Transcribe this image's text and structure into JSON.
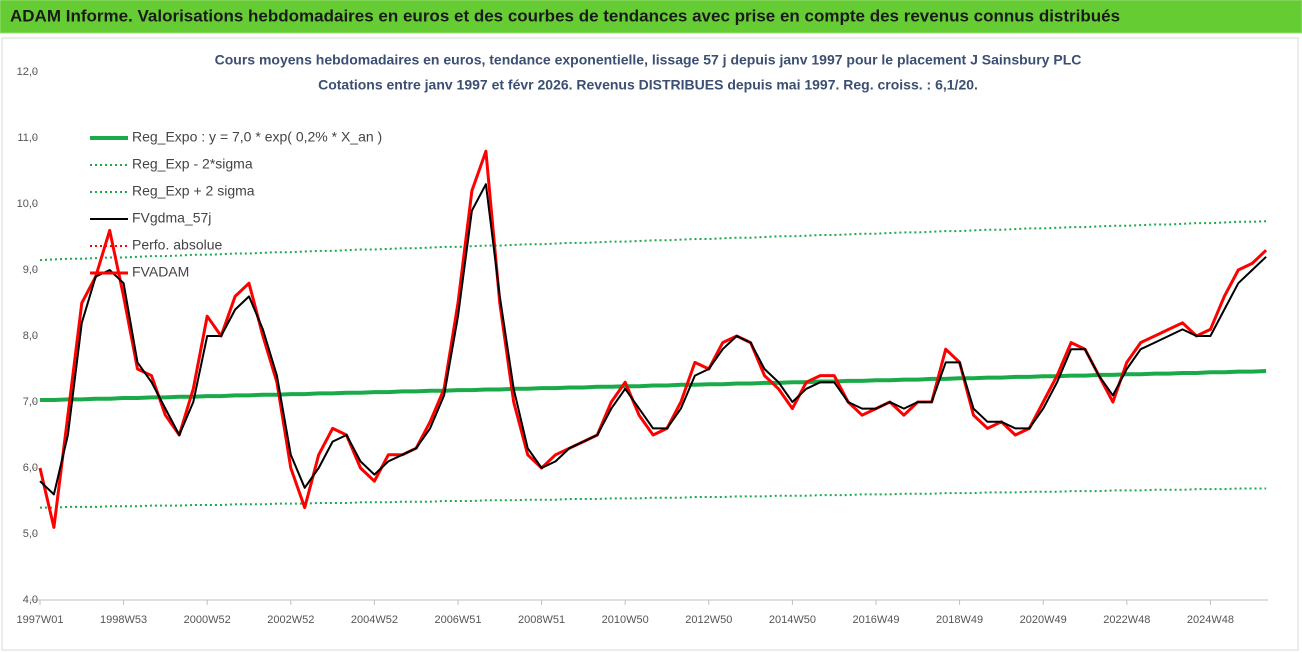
{
  "header": "ADAM Informe. Valorisations hebdomadaires en euros et des courbes de tendances avec prise en compte des revenus connus distribués",
  "chart_data": {
    "type": "line",
    "title": "Cours moyens hebdomadaires en euros, tendance exponentielle, lissage 57 j depuis janv 1997 pour le placement J Sainsbury PLC",
    "subtitle": "Cotations entre janv 1997 et févr 2026. Revenus DISTRIBUES depuis mai 1997. Reg. croiss. : 6,1/20.",
    "legend": "upper left",
    "categories": [
      "1997W01",
      null,
      null,
      null,
      null,
      null,
      "1998W53",
      null,
      null,
      null,
      null,
      null,
      "2000W52",
      null,
      null,
      null,
      null,
      null,
      "2002W52",
      null,
      null,
      null,
      null,
      null,
      "2004W52",
      null,
      null,
      null,
      null,
      null,
      "2006W51",
      null,
      null,
      null,
      null,
      null,
      "2008W51",
      null,
      null,
      null,
      null,
      null,
      "2010W50",
      null,
      null,
      null,
      null,
      null,
      "2012W50",
      null,
      null,
      null,
      null,
      null,
      "2014W50",
      null,
      null,
      null,
      null,
      null,
      "2016W49",
      null,
      null,
      null,
      null,
      null,
      "2018W49",
      null,
      null,
      null,
      null,
      null,
      "2020W49",
      null,
      null,
      null,
      null,
      null,
      "2022W48",
      null,
      null,
      null,
      null,
      null,
      "2024W48",
      null,
      null,
      null,
      null
    ],
    "ylim": [
      4,
      12
    ],
    "yticks": [
      {
        "value": 4,
        "label": "4,0"
      },
      {
        "value": 5,
        "label": "5,0"
      },
      {
        "value": 6,
        "label": "6,0"
      },
      {
        "value": 7,
        "label": "7,0"
      },
      {
        "value": 8,
        "label": "8,0"
      },
      {
        "value": 9,
        "label": "9,0"
      },
      {
        "value": 10,
        "label": "10,0"
      },
      {
        "value": 11,
        "label": "11,0"
      },
      {
        "value": 12,
        "label": "12,0"
      }
    ],
    "series": [
      {
        "name": "Reg_Expo : y = 7,0 * exp( 0,2% *  X_an )",
        "color": "#1aaa4a",
        "style": "solid",
        "width": 4,
        "values": [
          7.03,
          7.03,
          7.04,
          7.04,
          7.05,
          7.05,
          7.06,
          7.06,
          7.07,
          7.07,
          7.08,
          7.08,
          7.09,
          7.09,
          7.1,
          7.1,
          7.11,
          7.11,
          7.12,
          7.12,
          7.13,
          7.13,
          7.14,
          7.14,
          7.15,
          7.15,
          7.16,
          7.16,
          7.17,
          7.17,
          7.18,
          7.18,
          7.19,
          7.19,
          7.2,
          7.2,
          7.21,
          7.21,
          7.22,
          7.22,
          7.23,
          7.23,
          7.24,
          7.24,
          7.25,
          7.25,
          7.26,
          7.26,
          7.27,
          7.27,
          7.28,
          7.28,
          7.29,
          7.29,
          7.3,
          7.3,
          7.31,
          7.31,
          7.32,
          7.32,
          7.33,
          7.33,
          7.34,
          7.34,
          7.35,
          7.35,
          7.36,
          7.36,
          7.37,
          7.37,
          7.38,
          7.38,
          7.39,
          7.39,
          7.4,
          7.4,
          7.41,
          7.41,
          7.42,
          7.42,
          7.43,
          7.43,
          7.44,
          7.44,
          7.45,
          7.45,
          7.46,
          7.46,
          7.47
        ]
      },
      {
        "name": "Reg_Exp - 2*sigma",
        "color": "#1aaa4a",
        "style": "dotted",
        "width": 2,
        "values": [
          5.4,
          5.4,
          5.41,
          5.41,
          5.41,
          5.42,
          5.42,
          5.42,
          5.43,
          5.43,
          5.43,
          5.44,
          5.44,
          5.44,
          5.45,
          5.45,
          5.45,
          5.46,
          5.46,
          5.46,
          5.47,
          5.47,
          5.47,
          5.48,
          5.48,
          5.48,
          5.49,
          5.49,
          5.49,
          5.5,
          5.5,
          5.5,
          5.51,
          5.51,
          5.51,
          5.52,
          5.52,
          5.52,
          5.53,
          5.53,
          5.53,
          5.54,
          5.54,
          5.54,
          5.55,
          5.55,
          5.55,
          5.56,
          5.56,
          5.56,
          5.57,
          5.57,
          5.57,
          5.58,
          5.58,
          5.58,
          5.59,
          5.59,
          5.59,
          5.6,
          5.6,
          5.6,
          5.61,
          5.61,
          5.61,
          5.62,
          5.62,
          5.62,
          5.63,
          5.63,
          5.63,
          5.64,
          5.64,
          5.64,
          5.65,
          5.65,
          5.65,
          5.66,
          5.66,
          5.66,
          5.67,
          5.67,
          5.67,
          5.68,
          5.68,
          5.68,
          5.69,
          5.69,
          5.69
        ]
      },
      {
        "name": "Reg_Exp + 2 sigma",
        "color": "#1aaa4a",
        "style": "dotted",
        "width": 2,
        "values": [
          9.15,
          9.16,
          9.17,
          9.17,
          9.18,
          9.19,
          9.19,
          9.2,
          9.21,
          9.21,
          9.22,
          9.23,
          9.23,
          9.24,
          9.25,
          9.25,
          9.26,
          9.27,
          9.27,
          9.28,
          9.29,
          9.29,
          9.3,
          9.31,
          9.31,
          9.32,
          9.33,
          9.33,
          9.34,
          9.35,
          9.35,
          9.36,
          9.37,
          9.37,
          9.38,
          9.39,
          9.39,
          9.4,
          9.41,
          9.41,
          9.42,
          9.43,
          9.43,
          9.44,
          9.45,
          9.45,
          9.46,
          9.47,
          9.47,
          9.48,
          9.49,
          9.49,
          9.5,
          9.51,
          9.51,
          9.52,
          9.53,
          9.53,
          9.54,
          9.55,
          9.55,
          9.56,
          9.57,
          9.57,
          9.58,
          9.59,
          9.59,
          9.6,
          9.61,
          9.61,
          9.62,
          9.63,
          9.63,
          9.64,
          9.65,
          9.65,
          9.66,
          9.67,
          9.67,
          9.68,
          9.69,
          9.69,
          9.7,
          9.71,
          9.71,
          9.72,
          9.73,
          9.73,
          9.74
        ]
      },
      {
        "name": "FVgdma_57j",
        "color": "#000000",
        "style": "solid",
        "width": 2,
        "order": 3,
        "values": [
          5.8,
          5.6,
          6.5,
          8.2,
          8.9,
          9.0,
          8.8,
          7.6,
          7.3,
          6.9,
          6.5,
          7.0,
          8.0,
          8.0,
          8.4,
          8.6,
          8.1,
          7.4,
          6.2,
          5.7,
          6.0,
          6.4,
          6.5,
          6.1,
          5.9,
          6.1,
          6.2,
          6.3,
          6.6,
          7.1,
          8.3,
          9.9,
          10.3,
          8.6,
          7.2,
          6.3,
          6.0,
          6.1,
          6.3,
          6.4,
          6.5,
          6.9,
          7.2,
          6.9,
          6.6,
          6.6,
          6.9,
          7.4,
          7.5,
          7.8,
          8.0,
          7.9,
          7.5,
          7.3,
          7.0,
          7.2,
          7.3,
          7.3,
          7.0,
          6.9,
          6.9,
          7.0,
          6.9,
          7.0,
          7.0,
          7.6,
          7.6,
          6.9,
          6.7,
          6.7,
          6.6,
          6.6,
          6.9,
          7.3,
          7.8,
          7.8,
          7.4,
          7.1,
          7.5,
          7.8,
          7.9,
          8.0,
          8.1,
          8.0,
          8.0,
          8.4,
          8.8,
          9.0,
          9.2
        ]
      },
      {
        "name": "Perfo. absolue",
        "color": "#ff0000",
        "style": "dotted",
        "width": 2
      },
      {
        "name": "FVADAM",
        "color": "#ff0000",
        "style": "solid",
        "width": 3,
        "order": 2,
        "values": [
          6.0,
          5.1,
          6.8,
          8.5,
          8.9,
          9.6,
          8.6,
          7.5,
          7.4,
          6.8,
          6.5,
          7.2,
          8.3,
          8.0,
          8.6,
          8.8,
          8.0,
          7.3,
          6.0,
          5.4,
          6.2,
          6.6,
          6.5,
          6.0,
          5.8,
          6.2,
          6.2,
          6.3,
          6.7,
          7.2,
          8.5,
          10.2,
          10.8,
          8.5,
          7.0,
          6.2,
          6.0,
          6.2,
          6.3,
          6.4,
          6.5,
          7.0,
          7.3,
          6.8,
          6.5,
          6.6,
          7.0,
          7.6,
          7.5,
          7.9,
          8.0,
          7.9,
          7.4,
          7.2,
          6.9,
          7.3,
          7.4,
          7.4,
          7.0,
          6.8,
          6.9,
          7.0,
          6.8,
          7.0,
          7.0,
          7.8,
          7.6,
          6.8,
          6.6,
          6.7,
          6.5,
          6.6,
          7.0,
          7.4,
          7.9,
          7.8,
          7.4,
          7.0,
          7.6,
          7.9,
          8.0,
          8.1,
          8.2,
          8.0,
          8.1,
          8.6,
          9.0,
          9.1,
          9.3
        ]
      }
    ]
  }
}
